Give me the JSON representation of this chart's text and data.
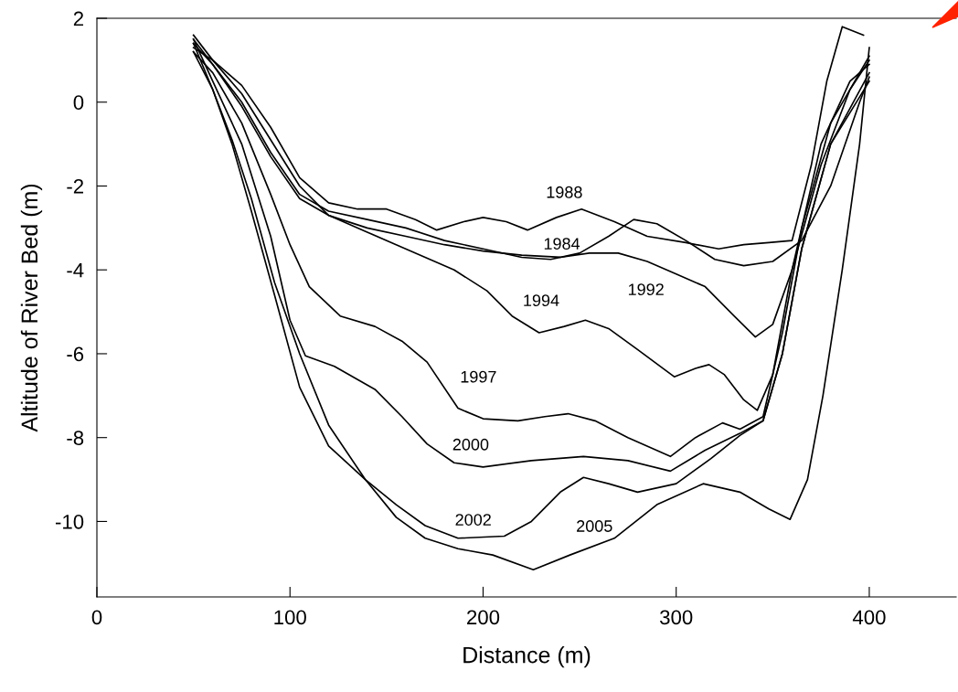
{
  "chart_data": {
    "type": "line",
    "xlabel": "Distance (m)",
    "ylabel": "Altitude of River Bed (m)",
    "xlim": [
      0,
      445
    ],
    "xticks": [
      0,
      100,
      200,
      300,
      400
    ],
    "ylim": [
      -11.8,
      2
    ],
    "yticks": [
      2,
      0,
      -2,
      -4,
      -6,
      -8,
      -10
    ],
    "grid": false,
    "legend": false,
    "marker": "none",
    "line_style": "solid",
    "series": [
      {
        "name": "1988",
        "color": "#000000",
        "x": [
          50,
          60,
          75,
          90,
          105,
          120,
          135,
          150,
          165,
          176,
          190,
          200,
          212,
          223,
          238,
          251,
          268,
          285,
          305,
          322,
          335,
          348,
          360,
          370,
          378,
          386,
          397
        ],
        "values": [
          1.6,
          1.0,
          0.4,
          -0.6,
          -1.8,
          -2.4,
          -2.55,
          -2.55,
          -2.8,
          -3.05,
          -2.85,
          -2.75,
          -2.85,
          -3.05,
          -2.75,
          -2.55,
          -2.85,
          -3.2,
          -3.35,
          -3.5,
          -3.4,
          -3.35,
          -3.3,
          -1.5,
          0.5,
          1.8,
          1.6
        ]
      },
      {
        "name": "1984",
        "color": "#000000",
        "x": [
          50,
          60,
          75,
          90,
          105,
          120,
          140,
          160,
          180,
          200,
          220,
          235,
          250,
          265,
          278,
          290,
          305,
          320,
          335,
          350,
          365,
          380,
          395,
          400
        ],
        "values": [
          1.5,
          0.9,
          0.0,
          -1.2,
          -2.2,
          -2.6,
          -2.8,
          -3.0,
          -3.3,
          -3.5,
          -3.7,
          -3.75,
          -3.6,
          -3.2,
          -2.8,
          -2.9,
          -3.3,
          -3.75,
          -3.9,
          -3.8,
          -3.3,
          -2.0,
          0.0,
          0.6
        ]
      },
      {
        "name": "1992",
        "color": "#000000",
        "x": [
          50,
          60,
          75,
          90,
          105,
          120,
          140,
          160,
          180,
          200,
          220,
          240,
          255,
          270,
          285,
          300,
          315,
          330,
          341,
          350,
          360,
          375,
          390,
          400
        ],
        "values": [
          1.4,
          0.9,
          -0.1,
          -1.3,
          -2.3,
          -2.7,
          -3.0,
          -3.2,
          -3.4,
          -3.55,
          -3.65,
          -3.7,
          -3.6,
          -3.6,
          -3.8,
          -4.1,
          -4.4,
          -5.1,
          -5.6,
          -5.3,
          -4.0,
          -1.5,
          0.3,
          1.0
        ]
      },
      {
        "name": "1994",
        "color": "#000000",
        "x": [
          50,
          60,
          75,
          90,
          105,
          120,
          140,
          155,
          170,
          185,
          202,
          215,
          229,
          242,
          253,
          265,
          280,
          299,
          310,
          317,
          325,
          335,
          342,
          350,
          360,
          375,
          390,
          400
        ],
        "values": [
          1.3,
          1.0,
          0.2,
          -0.9,
          -2.0,
          -2.7,
          -3.1,
          -3.4,
          -3.7,
          -4.0,
          -4.5,
          -5.1,
          -5.5,
          -5.35,
          -5.2,
          -5.4,
          -5.9,
          -6.55,
          -6.35,
          -6.26,
          -6.5,
          -7.1,
          -7.35,
          -6.5,
          -4.0,
          -1.0,
          0.5,
          0.9
        ]
      },
      {
        "name": "1997",
        "color": "#000000",
        "x": [
          50,
          60,
          75,
          90,
          100,
          110,
          126,
          144,
          158,
          171,
          187,
          200,
          218,
          232,
          244,
          258,
          275,
          297,
          310,
          324,
          333,
          345,
          355,
          365,
          380,
          400
        ],
        "values": [
          1.2,
          0.7,
          -0.5,
          -2.2,
          -3.4,
          -4.4,
          -5.1,
          -5.35,
          -5.7,
          -6.2,
          -7.3,
          -7.55,
          -7.6,
          -7.5,
          -7.43,
          -7.6,
          -8.0,
          -8.45,
          -8.0,
          -7.65,
          -7.8,
          -7.5,
          -5.5,
          -3.0,
          -0.5,
          1.1
        ]
      },
      {
        "name": "2000",
        "color": "#000000",
        "x": [
          50,
          60,
          75,
          90,
          100,
          108,
          123,
          144,
          158,
          171,
          185,
          200,
          225,
          252,
          275,
          297,
          315,
          333,
          345,
          355,
          365,
          380,
          400
        ],
        "values": [
          1.5,
          0.5,
          -1.0,
          -3.2,
          -5.2,
          -6.05,
          -6.3,
          -6.85,
          -7.5,
          -8.15,
          -8.6,
          -8.7,
          -8.55,
          -8.45,
          -8.55,
          -8.8,
          -8.3,
          -7.9,
          -7.6,
          -6.0,
          -3.5,
          -1.0,
          0.7
        ]
      },
      {
        "name": "2002",
        "color": "#000000",
        "x": [
          50,
          60,
          70,
          80,
          92,
          105,
          120,
          139,
          155,
          170,
          187,
          211,
          225,
          240,
          252,
          265,
          280,
          300,
          318,
          333,
          345,
          355,
          365,
          380,
          400
        ],
        "values": [
          1.4,
          0.3,
          -1.0,
          -2.6,
          -4.6,
          -6.8,
          -8.2,
          -9.0,
          -9.6,
          -10.1,
          -10.4,
          -10.35,
          -10.0,
          -9.3,
          -8.95,
          -9.1,
          -9.3,
          -9.1,
          -8.5,
          -7.95,
          -7.6,
          -6.0,
          -3.5,
          -1.0,
          0.5
        ]
      },
      {
        "name": "2005",
        "color": "#000000",
        "x": [
          50,
          60,
          70,
          80,
          92,
          105,
          120,
          139,
          155,
          170,
          187,
          205,
          226,
          245,
          268,
          290,
          314,
          333,
          348,
          359,
          368,
          376,
          386,
          395,
          400
        ],
        "values": [
          1.2,
          0.3,
          -0.9,
          -2.3,
          -4.3,
          -6.0,
          -7.7,
          -9.0,
          -9.9,
          -10.4,
          -10.65,
          -10.8,
          -11.15,
          -10.8,
          -10.4,
          -9.6,
          -9.1,
          -9.3,
          -9.7,
          -9.95,
          -9.0,
          -7.0,
          -4.0,
          -1.0,
          1.3
        ]
      }
    ]
  }
}
